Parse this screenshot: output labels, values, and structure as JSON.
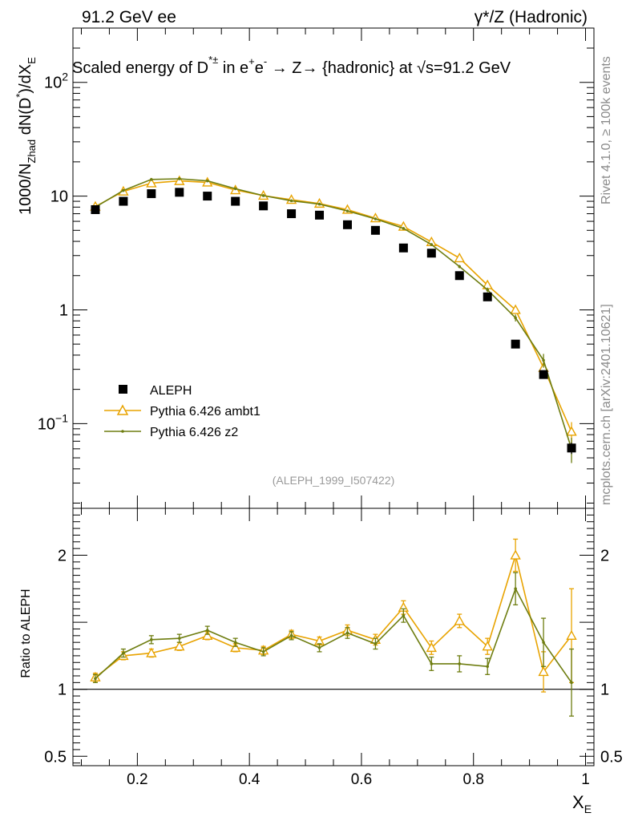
{
  "header": {
    "left": "91.2 GeV ee",
    "right": "γ*/Z (Hadronic)"
  },
  "side_labels": {
    "rivet": "Rivet 4.1.0, ≥ 100k events",
    "mcplots": "mcplots.cern.ch [arXiv:2401.10621]"
  },
  "chart_data": [
    {
      "type": "scatter",
      "panel": "main",
      "title": "Scaled energy of D*± in e+e- → Z→ {hadronic} at √s=91.2 GeV",
      "title_parts": {
        "a": "Scaled energy of D",
        "sup1": "*±",
        "b": " in e",
        "sup2": "+",
        "c": "e",
        "sup3": "-",
        "d": " →  Z→ {hadronic} at ",
        "root": "√",
        "e": "s=91.2 GeV"
      },
      "ylabel": "1000/N_Zhad dN(D*)/dX_E",
      "ylabel_parts": {
        "a": "1000/N",
        "sub": "Zhad",
        "b": " dN(D",
        "sup": "*",
        "c": ")/dX",
        "sub2": "E"
      },
      "yscale": "log",
      "ylim": [
        0.018,
        300
      ],
      "xlim": [
        0.085,
        1.015
      ],
      "reference": "(ALEPH_1999_I507422)",
      "y_ticks": [
        {
          "value": 100,
          "label": "10",
          "sup": "2"
        },
        {
          "value": 10,
          "label": "10",
          "sup": ""
        },
        {
          "value": 1,
          "label": "1",
          "sup": ""
        },
        {
          "value": 0.1,
          "label": "10",
          "sup": "−1"
        }
      ],
      "legend_position": "bottom-left",
      "x": [
        0.125,
        0.175,
        0.225,
        0.275,
        0.325,
        0.375,
        0.425,
        0.475,
        0.525,
        0.575,
        0.625,
        0.675,
        0.725,
        0.775,
        0.825,
        0.875,
        0.925,
        0.975
      ],
      "series": [
        {
          "name": "ALEPH",
          "marker": "square",
          "color": "#000000",
          "values": [
            7.6,
            9.0,
            10.5,
            10.8,
            10.0,
            9.0,
            8.2,
            7.0,
            6.8,
            5.6,
            5.0,
            3.5,
            3.15,
            2.0,
            1.3,
            0.5,
            0.27,
            0.061
          ],
          "errors": [
            0.3,
            0.3,
            0.3,
            0.3,
            0.3,
            0.3,
            0.25,
            0.2,
            0.2,
            0.15,
            0.15,
            0.12,
            0.1,
            0.08,
            0.06,
            0.03,
            0.02,
            0.007
          ]
        },
        {
          "name": "Pythia 6.426 ambt1",
          "marker": "triangle-open",
          "color": "#E8A300",
          "values": [
            8.1,
            11.0,
            13.0,
            13.6,
            13.2,
            11.3,
            10.1,
            9.3,
            8.6,
            7.6,
            6.4,
            5.4,
            3.95,
            2.85,
            1.65,
            1.0,
            0.31,
            0.085
          ],
          "errors": [
            0.3,
            0.3,
            0.3,
            0.3,
            0.3,
            0.3,
            0.25,
            0.2,
            0.2,
            0.18,
            0.15,
            0.12,
            0.1,
            0.08,
            0.06,
            0.05,
            0.04,
            0.018
          ]
        },
        {
          "name": "Pythia 6.426 z2",
          "marker": "dot",
          "color": "#6E7D10",
          "values": [
            8.0,
            11.2,
            14.0,
            14.2,
            13.6,
            11.6,
            10.1,
            9.1,
            8.5,
            7.4,
            6.3,
            5.2,
            3.75,
            2.4,
            1.5,
            0.85,
            0.36,
            0.06
          ],
          "errors": [
            0.3,
            0.3,
            0.3,
            0.3,
            0.3,
            0.3,
            0.25,
            0.2,
            0.2,
            0.18,
            0.15,
            0.12,
            0.1,
            0.08,
            0.07,
            0.06,
            0.05,
            0.015
          ]
        }
      ]
    },
    {
      "type": "line",
      "panel": "ratio",
      "ylabel": "Ratio to ALEPH",
      "ylim": [
        0.43,
        2.35
      ],
      "reference_line": 1,
      "y_ticks": [
        {
          "value": 2,
          "label": "2"
        },
        {
          "value": 1,
          "label": "1"
        },
        {
          "value": 0.5,
          "label": "0.5"
        }
      ],
      "xlabel": "X_E",
      "xlabel_parts": {
        "a": "X",
        "sub": "E"
      },
      "x_ticks": [
        {
          "value": 0.2,
          "label": "0.2"
        },
        {
          "value": 0.4,
          "label": "0.4"
        },
        {
          "value": 0.6,
          "label": "0.6"
        },
        {
          "value": 0.8,
          "label": "0.8"
        },
        {
          "value": 1.0,
          "label": "1"
        }
      ],
      "x": [
        0.125,
        0.175,
        0.225,
        0.275,
        0.325,
        0.375,
        0.425,
        0.475,
        0.525,
        0.575,
        0.625,
        0.675,
        0.725,
        0.775,
        0.825,
        0.875,
        0.925,
        0.975
      ],
      "series": [
        {
          "name": "Pythia 6.426 ambt1",
          "color": "#E8A300",
          "values": [
            1.09,
            1.25,
            1.27,
            1.32,
            1.4,
            1.31,
            1.29,
            1.41,
            1.36,
            1.44,
            1.37,
            1.61,
            1.31,
            1.51,
            1.32,
            2.0,
            1.13,
            1.4
          ],
          "errors": [
            0.03,
            0.03,
            0.03,
            0.03,
            0.03,
            0.03,
            0.03,
            0.03,
            0.03,
            0.04,
            0.04,
            0.05,
            0.05,
            0.05,
            0.06,
            0.12,
            0.15,
            0.35
          ]
        },
        {
          "name": "Pythia 6.426 z2",
          "color": "#6E7D10",
          "values": [
            1.08,
            1.27,
            1.37,
            1.38,
            1.44,
            1.35,
            1.28,
            1.4,
            1.31,
            1.42,
            1.34,
            1.55,
            1.19,
            1.19,
            1.17,
            1.75,
            1.35,
            1.05
          ],
          "errors": [
            0.03,
            0.03,
            0.03,
            0.03,
            0.03,
            0.03,
            0.03,
            0.03,
            0.03,
            0.04,
            0.04,
            0.05,
            0.05,
            0.06,
            0.06,
            0.12,
            0.18,
            0.25
          ]
        }
      ]
    }
  ]
}
